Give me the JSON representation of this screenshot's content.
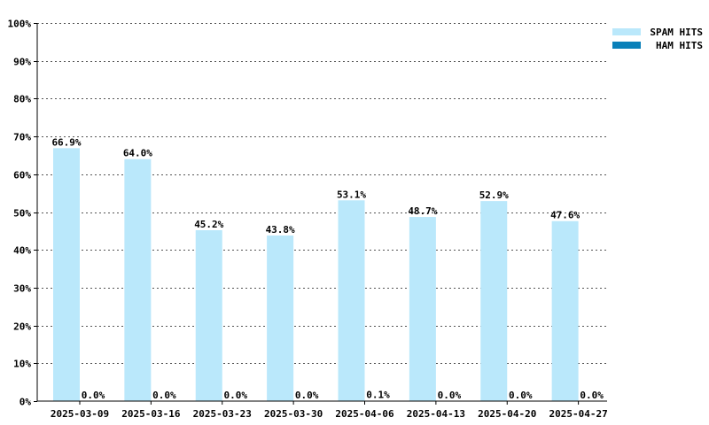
{
  "chart_data": {
    "type": "bar",
    "title": "",
    "xlabel": "",
    "ylabel": "",
    "ylim": [
      0,
      100
    ],
    "yticks": [
      0,
      10,
      20,
      30,
      40,
      50,
      60,
      70,
      80,
      90,
      100
    ],
    "ytick_suffix": "%",
    "grid": true,
    "legend_position": "top-right",
    "categories": [
      "2025-03-09",
      "2025-03-16",
      "2025-03-23",
      "2025-03-30",
      "2025-04-06",
      "2025-04-13",
      "2025-04-20",
      "2025-04-27"
    ],
    "series": [
      {
        "name": "SPAM HITS",
        "color": "#bae8fb",
        "values": [
          66.9,
          64.0,
          45.2,
          43.8,
          53.1,
          48.7,
          52.9,
          47.6
        ],
        "labels": [
          "66.9%",
          "64.0%",
          "45.2%",
          "43.8%",
          "53.1%",
          "48.7%",
          "52.9%",
          "47.6%"
        ]
      },
      {
        "name": "HAM HITS",
        "color": "#0a80b9",
        "values": [
          0.0,
          0.0,
          0.0,
          0.0,
          0.1,
          0.0,
          0.0,
          0.0
        ],
        "labels": [
          "0.0%",
          "0.0%",
          "0.0%",
          "0.0%",
          "0.1%",
          "0.0%",
          "0.0%",
          "0.0%"
        ]
      }
    ]
  }
}
